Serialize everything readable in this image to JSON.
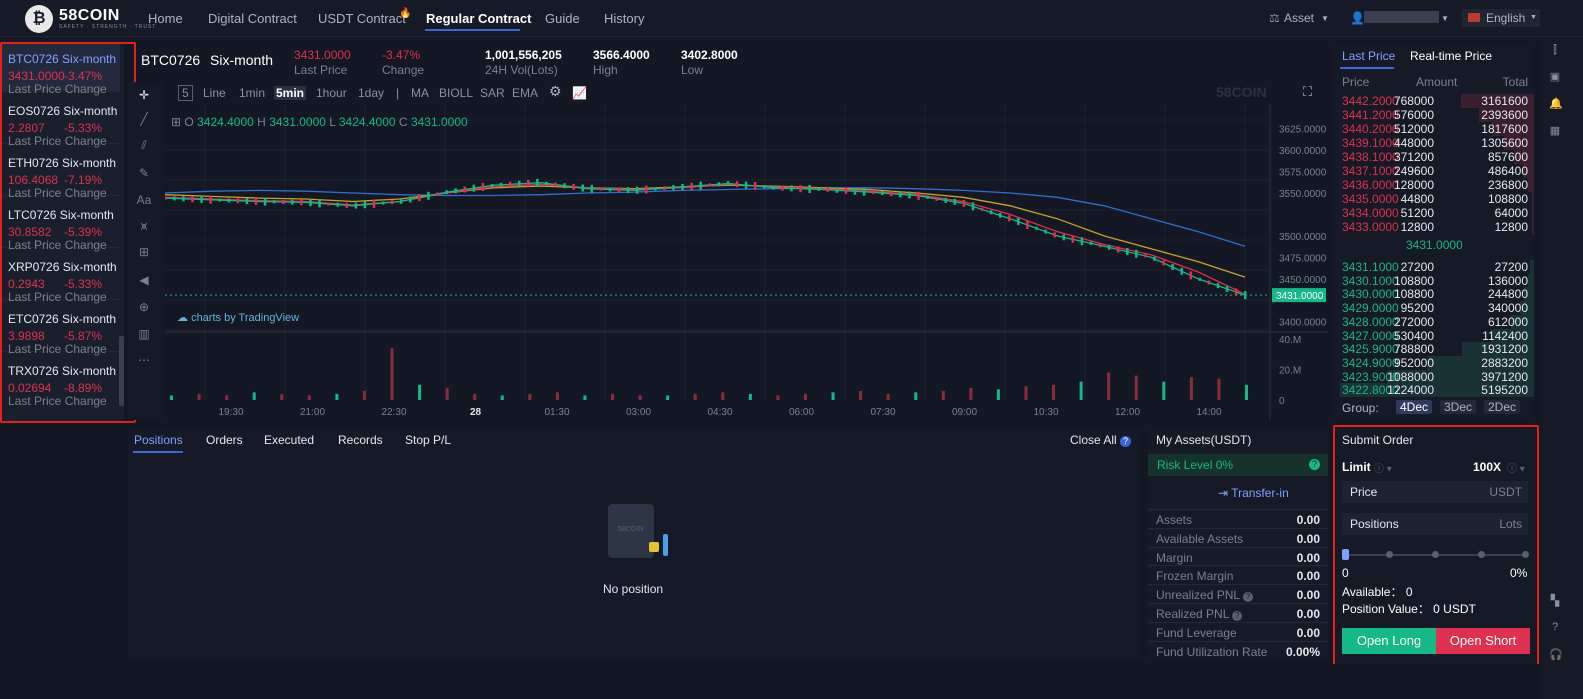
{
  "header": {
    "logo_text": "58COIN",
    "logo_sub": "SAFETY · STRENGTH · TRUST",
    "nav": [
      {
        "label": "Home"
      },
      {
        "label": "Digital Contract"
      },
      {
        "label": "USDT Contract"
      },
      {
        "label": "Regular Contract"
      },
      {
        "label": "Guide"
      },
      {
        "label": "History"
      }
    ],
    "asset_label": "Asset",
    "language": "English"
  },
  "coins": [
    {
      "name": "BTC0726 Six-month",
      "price": "3431.0000",
      "change": "-3.47%",
      "labels": "Last Price Change"
    },
    {
      "name": "EOS0726 Six-month",
      "price": "2.2807",
      "change": "-5.33%",
      "labels": "Last Price Change"
    },
    {
      "name": "ETH0726 Six-month",
      "price": "106.4068",
      "change": "-7.19%",
      "labels": "Last Price Change"
    },
    {
      "name": "LTC0726 Six-month",
      "price": "30.8582",
      "change": "-5.39%",
      "labels": "Last Price Change"
    },
    {
      "name": "XRP0726 Six-month",
      "price": "0.2943",
      "change": "-5.33%",
      "labels": "Last Price Change"
    },
    {
      "name": "ETC0726 Six-month",
      "price": "3.9898",
      "change": "-5.87%",
      "labels": "Last Price Change"
    },
    {
      "name": "TRX0726 Six-month",
      "price": "0.02694",
      "change": "-8.89%",
      "labels": "Last Price Change"
    }
  ],
  "ticker": {
    "symbol": "BTC0726",
    "period": "Six-month",
    "last_price": "3431.0000",
    "last_price_label": "Last Price",
    "change": "-3.47%",
    "change_label": "Change",
    "volume": "1,001,556,205",
    "volume_label": "24H Vol(Lots)",
    "high": "3566.4000",
    "high_label": "High",
    "low": "3402.8000",
    "low_label": "Low"
  },
  "toolbar": {
    "items": [
      "Line",
      "1min",
      "5min",
      "1hour",
      "1day",
      "MA",
      "BIOLL",
      "SAR",
      "EMA"
    ],
    "active": "5min",
    "num": "5",
    "watermark": "58COIN"
  },
  "chart_data": {
    "type": "line",
    "title": "",
    "ohlc": {
      "O": "3424.4000",
      "H": "3431.0000",
      "L": "3424.4000",
      "C": "3431.0000"
    },
    "ohlc_labels": {
      "O": "O",
      "H": "H",
      "L": "L",
      "C": "C"
    },
    "price_ticks": [
      "3625.0000",
      "3600.0000",
      "3575.0000",
      "3550.0000",
      "3500.0000",
      "3475.0000",
      "3450.0000",
      "3400.0000"
    ],
    "volume_ticks": [
      "40.M",
      "20.M",
      "0"
    ],
    "time_ticks": [
      "19:30",
      "21:00",
      "22:30",
      "28",
      "01:30",
      "03:00",
      "04:30",
      "06:00",
      "07:30",
      "09:00",
      "10:30",
      "12:00",
      "14:00"
    ],
    "current_price": "3431.0000",
    "attribution": "charts by TradingView",
    "ylim": [
      3395,
      3635
    ],
    "series": [
      {
        "name": "",
        "color": "#2b6fd6",
        "values": [
          3550,
          3552,
          3553,
          3552,
          3550,
          3548,
          3547,
          3547,
          3548,
          3550,
          3551,
          3553,
          3554,
          3555,
          3556,
          3556,
          3555,
          3553,
          3550,
          3545,
          3535,
          3520,
          3505,
          3488
        ]
      },
      {
        "name": "",
        "color": "#c9a227",
        "values": [
          3548,
          3546,
          3544,
          3543,
          3540,
          3543,
          3550,
          3556,
          3558,
          3556,
          3555,
          3557,
          3559,
          3558,
          3556,
          3554,
          3550,
          3545,
          3535,
          3520,
          3500,
          3485,
          3470,
          3452
        ]
      },
      {
        "name": "",
        "color": "#e0304f",
        "values": [
          3545,
          3543,
          3541,
          3540,
          3536,
          3540,
          3550,
          3557,
          3560,
          3556,
          3554,
          3556,
          3560,
          3557,
          3555,
          3552,
          3548,
          3540,
          3525,
          3505,
          3490,
          3478,
          3458,
          3432
        ]
      },
      {
        "name": "",
        "color": "#14b987",
        "values": [
          3544,
          3542,
          3540,
          3539,
          3535,
          3540,
          3551,
          3559,
          3562,
          3555,
          3553,
          3557,
          3561,
          3556,
          3554,
          3551,
          3547,
          3538,
          3520,
          3500,
          3488,
          3475,
          3450,
          3431
        ]
      }
    ],
    "volume_values": [
      3,
      4,
      3,
      5,
      4,
      3,
      4,
      6,
      34,
      10,
      8,
      4,
      3,
      4,
      5,
      3,
      4,
      3,
      3,
      4,
      5,
      4,
      3,
      4,
      5,
      6,
      4,
      5,
      6,
      8,
      7,
      9,
      10,
      12,
      18,
      16,
      12,
      15,
      14,
      10
    ]
  },
  "book": {
    "tab_last": "Last Price",
    "tab_realtime": "Real-time Price",
    "hdr_price": "Price",
    "hdr_amount": "Amount",
    "hdr_total": "Total",
    "asks": [
      {
        "price": "3442.2000",
        "amount": "768000",
        "total": "3161600",
        "depth": 0.61
      },
      {
        "price": "3441.2000",
        "amount": "576000",
        "total": "2393600",
        "depth": 0.46
      },
      {
        "price": "3440.2000",
        "amount": "512000",
        "total": "1817600",
        "depth": 0.35
      },
      {
        "price": "3439.1000",
        "amount": "448000",
        "total": "1305600",
        "depth": 0.25
      },
      {
        "price": "3438.1000",
        "amount": "371200",
        "total": "857600",
        "depth": 0.17
      },
      {
        "price": "3437.1000",
        "amount": "249600",
        "total": "486400",
        "depth": 0.09
      },
      {
        "price": "3436.0000",
        "amount": "128000",
        "total": "236800",
        "depth": 0.05
      },
      {
        "price": "3435.0000",
        "amount": "44800",
        "total": "108800",
        "depth": 0.02
      },
      {
        "price": "3434.0000",
        "amount": "51200",
        "total": "64000",
        "depth": 0.01
      },
      {
        "price": "3433.0000",
        "amount": "12800",
        "total": "12800",
        "depth": 0.0
      }
    ],
    "mid": "3431.0000",
    "bids": [
      {
        "price": "3431.1000",
        "amount": "27200",
        "total": "27200",
        "depth": 0.0
      },
      {
        "price": "3430.1000",
        "amount": "108800",
        "total": "136000",
        "depth": 0.03
      },
      {
        "price": "3430.0000",
        "amount": "108800",
        "total": "244800",
        "depth": 0.05
      },
      {
        "price": "3429.0000",
        "amount": "95200",
        "total": "340000",
        "depth": 0.07
      },
      {
        "price": "3428.0000",
        "amount": "272000",
        "total": "612000",
        "depth": 0.12
      },
      {
        "price": "3427.0000",
        "amount": "530400",
        "total": "1142400",
        "depth": 0.22
      },
      {
        "price": "3425.9000",
        "amount": "788800",
        "total": "1931200",
        "depth": 0.37
      },
      {
        "price": "3424.9000",
        "amount": "952000",
        "total": "2883200",
        "depth": 0.55
      },
      {
        "price": "3423.9000",
        "amount": "1088000",
        "total": "3971200",
        "depth": 0.76
      },
      {
        "price": "3422.8000",
        "amount": "1224000",
        "total": "5195200",
        "depth": 1.0
      }
    ],
    "group_label": "Group:",
    "groups": [
      "4Dec",
      "3Dec",
      "2Dec"
    ]
  },
  "positions": {
    "tabs": [
      "Positions",
      "Orders",
      "Executed",
      "Records",
      "Stop P/L"
    ],
    "close_all": "Close All",
    "empty": "No position",
    "illustration_text": "58COIN"
  },
  "assets": {
    "title": "My Assets(USDT)",
    "risk": "Risk Level 0%",
    "transfer": "Transfer-in",
    "rows": [
      {
        "label": "Assets",
        "value": "0.00"
      },
      {
        "label": "Available Assets",
        "value": "0.00"
      },
      {
        "label": "Margin",
        "value": "0.00"
      },
      {
        "label": "Frozen Margin",
        "value": "0.00"
      },
      {
        "label": "Unrealized PNL",
        "value": "0.00"
      },
      {
        "label": "Realized PNL",
        "value": "0.00"
      },
      {
        "label": "Fund Leverage",
        "value": "0.00"
      },
      {
        "label": "Fund Utilization Rate",
        "value": "0.00%"
      }
    ]
  },
  "submit": {
    "title": "Submit Order",
    "type": "Limit",
    "leverage": "100X",
    "price_label": "Price",
    "price_unit": "USDT",
    "pos_label": "Positions",
    "pos_unit": "Lots",
    "slider_min": "0",
    "slider_pct": "0%",
    "available": "Available： 0",
    "position_value": "Position Value： 0 USDT",
    "open_long": "Open Long",
    "open_short": "Open Short"
  },
  "colors": {
    "up": "#14b987",
    "down": "#e0304f",
    "accent": "#3a66d6"
  }
}
